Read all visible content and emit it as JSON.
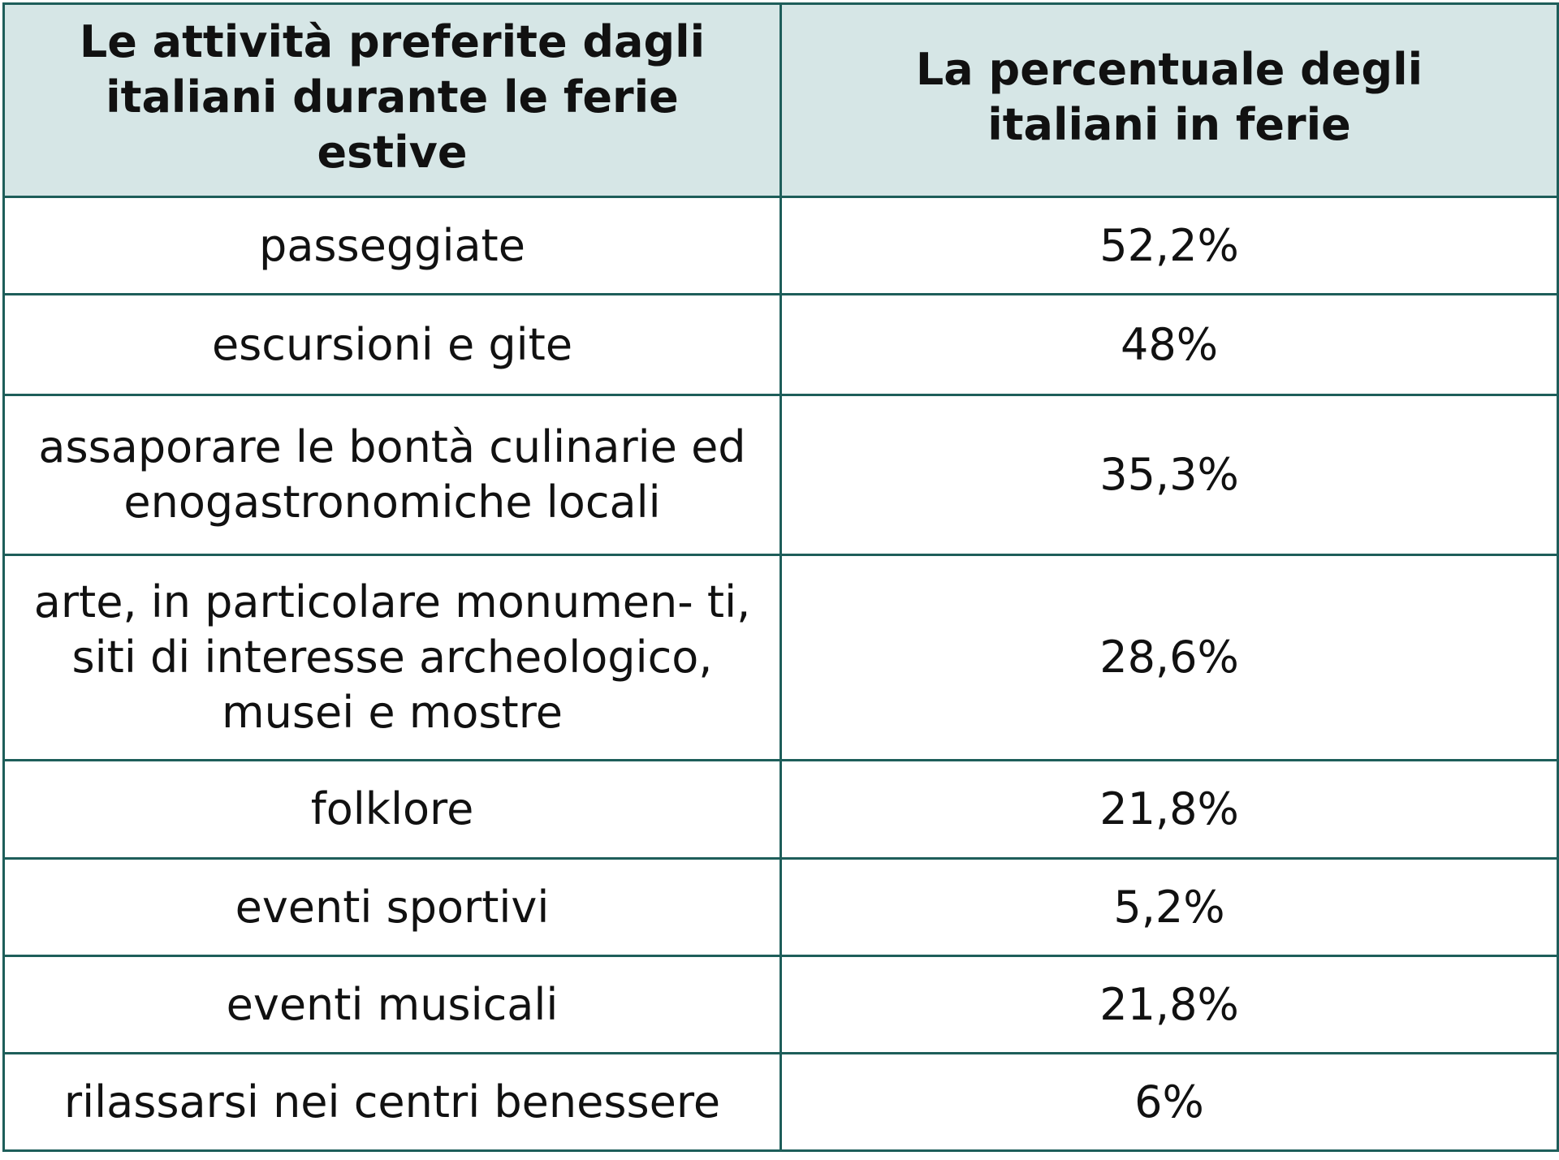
{
  "table": {
    "headers": [
      "Le attività preferite dagli italiani durante le ferie estive",
      "La percentuale degli italiani in ferie"
    ],
    "rows": [
      {
        "activity": "passeggiate",
        "percent": "52,2%"
      },
      {
        "activity": "escursioni e gite",
        "percent": "48%"
      },
      {
        "activity": "assaporare le bontà culinarie ed enogastronomiche locali",
        "percent": "35,3%"
      },
      {
        "activity": "arte, in particolare monumen- ti, siti di interesse archeologico, musei e mostre",
        "percent": "28,6%"
      },
      {
        "activity": "folklore",
        "percent": "21,8%"
      },
      {
        "activity": "eventi sportivi",
        "percent": "5,2%"
      },
      {
        "activity": "eventi musicali",
        "percent": "21,8%"
      },
      {
        "activity": "rilassarsi nei centri benessere",
        "percent": "6%"
      }
    ]
  },
  "colors": {
    "border": "#1e5e5a",
    "header_bg": "#d6e6e6",
    "text": "#111111"
  }
}
